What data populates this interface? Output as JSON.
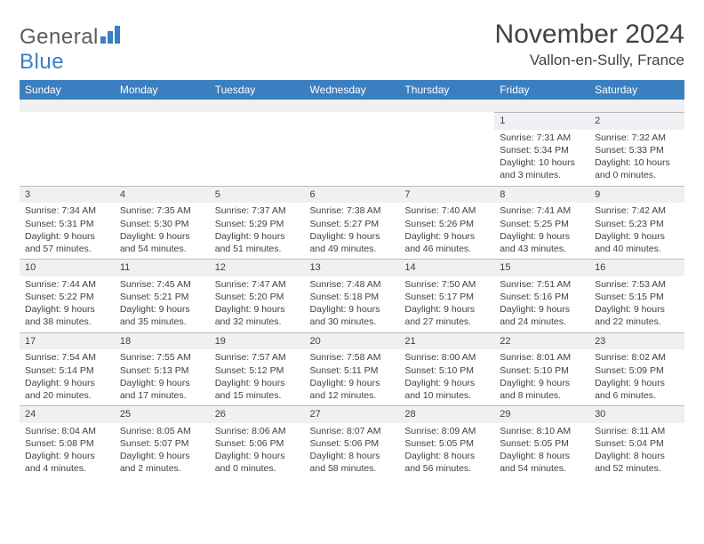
{
  "brand": {
    "general": "General",
    "blue": "Blue"
  },
  "title": "November 2024",
  "location": "Vallon-en-Sully, France",
  "colors": {
    "header_bg": "#3a7fbf",
    "header_text": "#ffffff",
    "daynum_bg": "#eef0f1",
    "text": "#414141",
    "rule": "#b5bcc2",
    "page_bg": "#ffffff"
  },
  "dow": [
    "Sunday",
    "Monday",
    "Tuesday",
    "Wednesday",
    "Thursday",
    "Friday",
    "Saturday"
  ],
  "weeks": [
    [
      null,
      null,
      null,
      null,
      null,
      {
        "n": "1",
        "sr": "7:31 AM",
        "ss": "5:34 PM",
        "dl": "10 hours and 3 minutes."
      },
      {
        "n": "2",
        "sr": "7:32 AM",
        "ss": "5:33 PM",
        "dl": "10 hours and 0 minutes."
      }
    ],
    [
      {
        "n": "3",
        "sr": "7:34 AM",
        "ss": "5:31 PM",
        "dl": "9 hours and 57 minutes."
      },
      {
        "n": "4",
        "sr": "7:35 AM",
        "ss": "5:30 PM",
        "dl": "9 hours and 54 minutes."
      },
      {
        "n": "5",
        "sr": "7:37 AM",
        "ss": "5:29 PM",
        "dl": "9 hours and 51 minutes."
      },
      {
        "n": "6",
        "sr": "7:38 AM",
        "ss": "5:27 PM",
        "dl": "9 hours and 49 minutes."
      },
      {
        "n": "7",
        "sr": "7:40 AM",
        "ss": "5:26 PM",
        "dl": "9 hours and 46 minutes."
      },
      {
        "n": "8",
        "sr": "7:41 AM",
        "ss": "5:25 PM",
        "dl": "9 hours and 43 minutes."
      },
      {
        "n": "9",
        "sr": "7:42 AM",
        "ss": "5:23 PM",
        "dl": "9 hours and 40 minutes."
      }
    ],
    [
      {
        "n": "10",
        "sr": "7:44 AM",
        "ss": "5:22 PM",
        "dl": "9 hours and 38 minutes."
      },
      {
        "n": "11",
        "sr": "7:45 AM",
        "ss": "5:21 PM",
        "dl": "9 hours and 35 minutes."
      },
      {
        "n": "12",
        "sr": "7:47 AM",
        "ss": "5:20 PM",
        "dl": "9 hours and 32 minutes."
      },
      {
        "n": "13",
        "sr": "7:48 AM",
        "ss": "5:18 PM",
        "dl": "9 hours and 30 minutes."
      },
      {
        "n": "14",
        "sr": "7:50 AM",
        "ss": "5:17 PM",
        "dl": "9 hours and 27 minutes."
      },
      {
        "n": "15",
        "sr": "7:51 AM",
        "ss": "5:16 PM",
        "dl": "9 hours and 24 minutes."
      },
      {
        "n": "16",
        "sr": "7:53 AM",
        "ss": "5:15 PM",
        "dl": "9 hours and 22 minutes."
      }
    ],
    [
      {
        "n": "17",
        "sr": "7:54 AM",
        "ss": "5:14 PM",
        "dl": "9 hours and 20 minutes."
      },
      {
        "n": "18",
        "sr": "7:55 AM",
        "ss": "5:13 PM",
        "dl": "9 hours and 17 minutes."
      },
      {
        "n": "19",
        "sr": "7:57 AM",
        "ss": "5:12 PM",
        "dl": "9 hours and 15 minutes."
      },
      {
        "n": "20",
        "sr": "7:58 AM",
        "ss": "5:11 PM",
        "dl": "9 hours and 12 minutes."
      },
      {
        "n": "21",
        "sr": "8:00 AM",
        "ss": "5:10 PM",
        "dl": "9 hours and 10 minutes."
      },
      {
        "n": "22",
        "sr": "8:01 AM",
        "ss": "5:10 PM",
        "dl": "9 hours and 8 minutes."
      },
      {
        "n": "23",
        "sr": "8:02 AM",
        "ss": "5:09 PM",
        "dl": "9 hours and 6 minutes."
      }
    ],
    [
      {
        "n": "24",
        "sr": "8:04 AM",
        "ss": "5:08 PM",
        "dl": "9 hours and 4 minutes."
      },
      {
        "n": "25",
        "sr": "8:05 AM",
        "ss": "5:07 PM",
        "dl": "9 hours and 2 minutes."
      },
      {
        "n": "26",
        "sr": "8:06 AM",
        "ss": "5:06 PM",
        "dl": "9 hours and 0 minutes."
      },
      {
        "n": "27",
        "sr": "8:07 AM",
        "ss": "5:06 PM",
        "dl": "8 hours and 58 minutes."
      },
      {
        "n": "28",
        "sr": "8:09 AM",
        "ss": "5:05 PM",
        "dl": "8 hours and 56 minutes."
      },
      {
        "n": "29",
        "sr": "8:10 AM",
        "ss": "5:05 PM",
        "dl": "8 hours and 54 minutes."
      },
      {
        "n": "30",
        "sr": "8:11 AM",
        "ss": "5:04 PM",
        "dl": "8 hours and 52 minutes."
      }
    ]
  ],
  "labels": {
    "sunrise": "Sunrise: ",
    "sunset": "Sunset: ",
    "daylight": "Daylight: "
  }
}
